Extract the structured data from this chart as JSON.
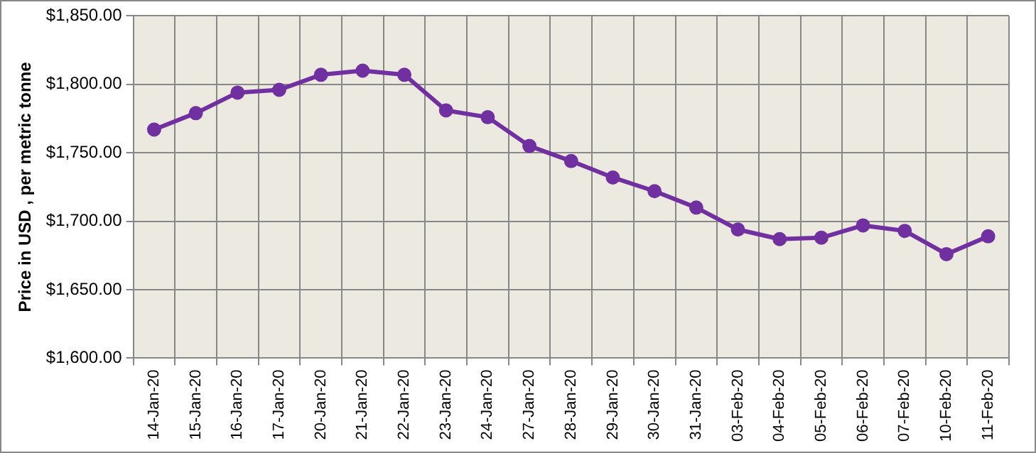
{
  "chart_data": {
    "type": "line",
    "ylabel": "Price in USD , per metric tonne",
    "categories": [
      "14-Jan-20",
      "15-Jan-20",
      "16-Jan-20",
      "17-Jan-20",
      "20-Jan-20",
      "21-Jan-20",
      "22-Jan-20",
      "23-Jan-20",
      "24-Jan-20",
      "27-Jan-20",
      "28-Jan-20",
      "29-Jan-20",
      "30-Jan-20",
      "31-Jan-20",
      "03-Feb-20",
      "04-Feb-20",
      "05-Feb-20",
      "06-Feb-20",
      "07-Feb-20",
      "10-Feb-20",
      "11-Feb-20"
    ],
    "series": [
      {
        "color": "#7030a0",
        "values": [
          1767,
          1779,
          1794,
          1796,
          1807,
          1810,
          1807,
          1781,
          1776,
          1755,
          1744,
          1732,
          1722,
          1710,
          1694,
          1687,
          1688,
          1697,
          1693,
          1676,
          1689
        ]
      }
    ],
    "ylim": [
      1600,
      1850
    ],
    "yticks": [
      {
        "value": 1600,
        "label": "$1,600.00"
      },
      {
        "value": 1650,
        "label": "$1,650.00"
      },
      {
        "value": 1700,
        "label": "$1,700.00"
      },
      {
        "value": 1750,
        "label": "$1,750.00"
      },
      {
        "value": 1800,
        "label": "$1,800.00"
      },
      {
        "value": 1850,
        "label": "$1,850.00"
      }
    ],
    "grid": true,
    "marker": "circle",
    "line_style": "solid",
    "legend": false
  }
}
